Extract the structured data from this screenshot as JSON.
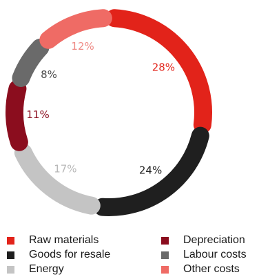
{
  "chart_data": {
    "type": "pie",
    "subtype": "donut",
    "title": "",
    "slices": [
      {
        "label": "Raw materials",
        "value": 28,
        "display": "28%",
        "color": "#e2231a",
        "text_color": "#e2231a"
      },
      {
        "label": "Goods for resale",
        "value": 24,
        "display": "24%",
        "color": "#1f1f1f",
        "text_color": "#1f1f1f"
      },
      {
        "label": "Energy",
        "value": 17,
        "display": "17%",
        "color": "#c4c4c4",
        "text_color": "#b8b8b8"
      },
      {
        "label": "Depreciation",
        "value": 11,
        "display": "11%",
        "color": "#8b0d1e",
        "text_color": "#8b0d1e"
      },
      {
        "label": "Labour costs",
        "value": 8,
        "display": "8%",
        "color": "#6a6a6a",
        "text_color": "#4a4a4a"
      },
      {
        "label": "Other costs",
        "value": 12,
        "display": "12%",
        "color": "#ef6b65",
        "text_color": "#ef8a85"
      }
    ],
    "legend_order": [
      "Raw materials",
      "Goods for resale",
      "Energy",
      "Depreciation",
      "Labour costs",
      "Other costs"
    ],
    "legend_placement": "bottom"
  }
}
